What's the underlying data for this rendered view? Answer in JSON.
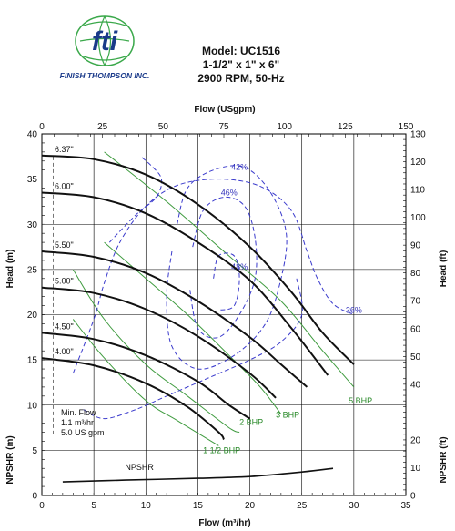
{
  "header": {
    "brand_name": "FINISH THOMPSON INC.",
    "logo_text": "fti",
    "model": "Model: UC1516",
    "size": "1-1/2\" x 1\" x 6\"",
    "speed": "2900 RPM, 50-Hz"
  },
  "colors": {
    "head": "#111111",
    "efficiency": "#3a3acc",
    "bhp": "#3f9b3f",
    "grid": "#000000",
    "logo_green": "#3aa84a",
    "logo_blue": "#1a3a8a"
  },
  "chart_data": {
    "type": "line",
    "xlabel": "Flow (m³/hr)",
    "x2label": "Flow (USgpm)",
    "ylabel": "Head (m)",
    "y2label": "Head (ft)",
    "npshr_ylabel": "NPSHR (m)",
    "npshr_y2label": "NPSHR (ft)",
    "xlim": [
      0,
      35
    ],
    "x2lim": [
      0,
      150
    ],
    "ylim": [
      0,
      40
    ],
    "y2lim": [
      0,
      130
    ],
    "grid": true,
    "x_ticks": [
      "0",
      "5",
      "10",
      "15",
      "20",
      "25",
      "30",
      "35"
    ],
    "x2_ticks": [
      "0",
      "25",
      "50",
      "75",
      "100",
      "125",
      "150"
    ],
    "y_ticks": [
      "10",
      "15",
      "20",
      "25",
      "30",
      "35",
      "40"
    ],
    "npshr_y_ticks": [
      "0",
      "5"
    ],
    "y2_ticks": [
      "40",
      "50",
      "60",
      "70",
      "80",
      "90",
      "100",
      "110",
      "120",
      "130"
    ],
    "npshr_y2_ticks": [
      "0",
      "10",
      "20"
    ],
    "head_curves": [
      {
        "name": "6.37\"",
        "points": [
          [
            0,
            37.6
          ],
          [
            5,
            37.2
          ],
          [
            10,
            35.5
          ],
          [
            15,
            32.2
          ],
          [
            20,
            27.5
          ],
          [
            24,
            22.5
          ],
          [
            27,
            18.0
          ],
          [
            30,
            14.5
          ]
        ]
      },
      {
        "name": "6.00\"",
        "points": [
          [
            0,
            33.5
          ],
          [
            5,
            33.0
          ],
          [
            10,
            31.2
          ],
          [
            15,
            28.0
          ],
          [
            20,
            23.8
          ],
          [
            24,
            18.5
          ],
          [
            27.5,
            13.3
          ]
        ]
      },
      {
        "name": "5.50\"",
        "points": [
          [
            0,
            27.0
          ],
          [
            5,
            26.4
          ],
          [
            10,
            24.6
          ],
          [
            15,
            21.5
          ],
          [
            20,
            17.5
          ],
          [
            23,
            14.5
          ],
          [
            25.5,
            12.0
          ]
        ]
      },
      {
        "name": "5.00\"",
        "points": [
          [
            0,
            23.0
          ],
          [
            5,
            22.4
          ],
          [
            10,
            20.6
          ],
          [
            15,
            17.6
          ],
          [
            20,
            13.5
          ],
          [
            22.5,
            10.8
          ]
        ]
      },
      {
        "name": "4.50\"",
        "points": [
          [
            0,
            18.0
          ],
          [
            5,
            17.3
          ],
          [
            10,
            15.5
          ],
          [
            15,
            12.6
          ],
          [
            18,
            10.0
          ],
          [
            20,
            8.5
          ]
        ]
      },
      {
        "name": "4.00\"",
        "points": [
          [
            0,
            15.2
          ],
          [
            5,
            14.4
          ],
          [
            10,
            12.4
          ],
          [
            14,
            9.8
          ],
          [
            17,
            7.0
          ],
          [
            17.5,
            6.2
          ]
        ]
      }
    ],
    "npshr": {
      "name": "NPSHR",
      "points": [
        [
          2,
          1.5
        ],
        [
          8,
          1.7
        ],
        [
          15,
          1.9
        ],
        [
          20,
          2.1
        ],
        [
          25,
          2.6
        ],
        [
          28,
          3.0
        ]
      ]
    },
    "efficiency_contours": [
      {
        "name": "36%",
        "label_at": [
          30,
          20.2
        ],
        "points": [
          [
            3,
            13.5
          ],
          [
            5,
            19.5
          ],
          [
            6,
            23.5
          ],
          [
            7.5,
            28.0
          ],
          [
            10,
            32.0
          ],
          [
            13,
            34.3
          ],
          [
            17,
            35.0
          ],
          [
            21,
            34.2
          ],
          [
            24,
            31.5
          ],
          [
            25.5,
            27.0
          ],
          [
            26.5,
            24.0
          ],
          [
            28,
            21.2
          ],
          [
            30,
            20.0
          ]
        ]
      },
      {
        "name": "36%",
        "points": [
          [
            4,
            9.5
          ],
          [
            6,
            8.5
          ],
          [
            9,
            9.5
          ],
          [
            12,
            11.0
          ],
          [
            16,
            13.0
          ],
          [
            20,
            15.0
          ],
          [
            23,
            17.0
          ],
          [
            25,
            20.0
          ],
          [
            24.5,
            24.0
          ]
        ]
      },
      {
        "name": "36%",
        "points": [
          [
            6.5,
            28.0
          ],
          [
            9,
            31.0
          ],
          [
            11,
            33.0
          ],
          [
            11.5,
            35.0
          ],
          [
            10.5,
            36.5
          ],
          [
            9.5,
            37.5
          ]
        ]
      },
      {
        "name": "42%",
        "label_at": [
          19,
          36.0
        ],
        "points": [
          [
            13,
            30.0
          ],
          [
            14,
            34.0
          ],
          [
            16.5,
            36.0
          ],
          [
            19.5,
            36.3
          ],
          [
            22,
            33.5
          ],
          [
            23.5,
            29.0
          ],
          [
            23.0,
            24.0
          ],
          [
            21.5,
            19.0
          ],
          [
            18.5,
            15.5
          ],
          [
            15.0,
            14.0
          ],
          [
            12.5,
            16.5
          ],
          [
            12.0,
            22.0
          ],
          [
            12.5,
            27.0
          ]
        ]
      },
      {
        "name": "46%",
        "label_at": [
          18,
          33.2
        ],
        "points": [
          [
            14.5,
            27.5
          ],
          [
            15.5,
            31.5
          ],
          [
            17.5,
            33.0
          ],
          [
            19.5,
            32.0
          ],
          [
            20.5,
            28.5
          ],
          [
            20.5,
            24.0
          ],
          [
            19.0,
            20.0
          ],
          [
            17.0,
            17.5
          ],
          [
            15.0,
            18.5
          ],
          [
            14.2,
            23.0
          ]
        ]
      },
      {
        "name": "48%",
        "label_at": [
          19,
          25.0
        ],
        "points": [
          [
            16.5,
            24.0
          ],
          [
            17.0,
            26.5
          ],
          [
            18.5,
            26.5
          ],
          [
            19.0,
            24.0
          ],
          [
            18.5,
            21.0
          ],
          [
            17.0,
            20.5
          ]
        ]
      }
    ],
    "bhp_lines": [
      {
        "name": "1 1/2 BHP",
        "points": [
          [
            3,
            19.5
          ],
          [
            6,
            15.2
          ],
          [
            10,
            10.5
          ],
          [
            13,
            8.3
          ],
          [
            17,
            5.5
          ]
        ],
        "label_at": [
          15.5,
          4.7
        ]
      },
      {
        "name": "2 BHP",
        "points": [
          [
            3,
            25.0
          ],
          [
            6,
            19.5
          ],
          [
            10,
            14.5
          ],
          [
            14,
            11.0
          ],
          [
            18,
            7.5
          ],
          [
            19,
            7.0
          ]
        ],
        "label_at": [
          19.0,
          7.8
        ]
      },
      {
        "name": "3 BHP",
        "points": [
          [
            6,
            28.0
          ],
          [
            10,
            24.0
          ],
          [
            14,
            20.0
          ],
          [
            18,
            15.5
          ],
          [
            21,
            12.0
          ],
          [
            23,
            9.0
          ]
        ],
        "label_at": [
          22.5,
          8.6
        ]
      },
      {
        "name": "5 BHP",
        "points": [
          [
            6,
            38.0
          ],
          [
            12,
            32.5
          ],
          [
            18,
            26.5
          ],
          [
            23,
            21.5
          ],
          [
            27,
            16.0
          ],
          [
            30,
            12.0
          ]
        ],
        "label_at": [
          29.5,
          10.2
        ]
      }
    ],
    "min_flow_line": {
      "x": 1.1
    },
    "annotations": [
      "Min. Flow",
      "1.1 m³/hr",
      "5.0 US gpm"
    ]
  }
}
